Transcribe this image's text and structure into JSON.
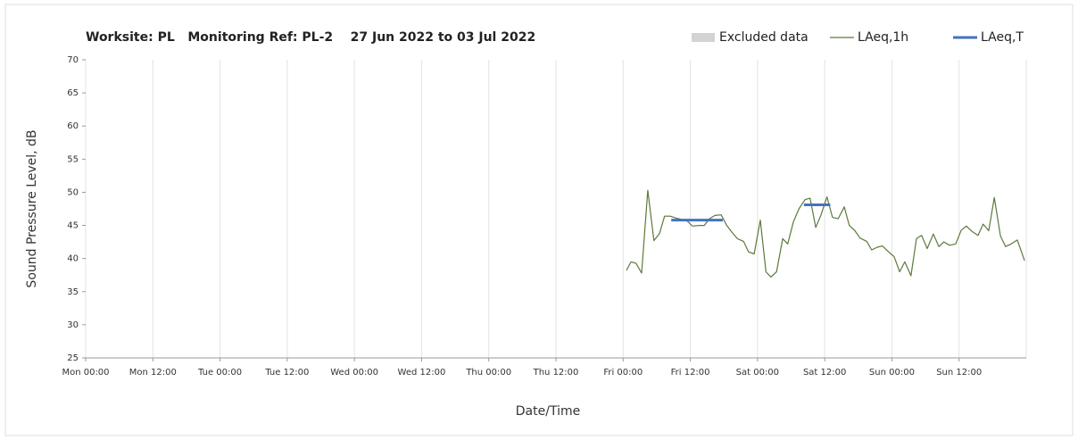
{
  "chart_data": {
    "type": "line",
    "title": "Worksite: PL   Monitoring Ref: PL-2    27 Jun 2022 to 03 Jul 2022",
    "x_label": "Date/Time",
    "y_label": "Sound Pressure Level, dB",
    "xlim": [
      0,
      168
    ],
    "xticks": [
      {
        "value": 0,
        "label": "Mon 00:00"
      },
      {
        "value": 12,
        "label": "Mon 12:00"
      },
      {
        "value": 24,
        "label": "Tue 00:00"
      },
      {
        "value": 36,
        "label": "Tue 12:00"
      },
      {
        "value": 48,
        "label": "Wed 00:00"
      },
      {
        "value": 60,
        "label": "Wed 12:00"
      },
      {
        "value": 72,
        "label": "Thu 00:00"
      },
      {
        "value": 84,
        "label": "Thu 12:00"
      },
      {
        "value": 96,
        "label": "Fri 00:00"
      },
      {
        "value": 108,
        "label": "Fri 12:00"
      },
      {
        "value": 120,
        "label": "Sat 00:00"
      },
      {
        "value": 132,
        "label": "Sat 12:00"
      },
      {
        "value": 144,
        "label": "Sun 00:00"
      },
      {
        "value": 156,
        "label": "Sun 12:00"
      }
    ],
    "ylim": [
      25,
      70
    ],
    "yticks": [
      25,
      30,
      35,
      40,
      45,
      50,
      55,
      60,
      65,
      70
    ],
    "grid": "x",
    "legend": "top-right",
    "series": [
      {
        "name": "Excluded data",
        "color": "#d3d3d3",
        "kind": "area",
        "x": [],
        "values": []
      },
      {
        "name": "LAeq,1h",
        "color": "#5b7a3c",
        "kind": "thin",
        "x": [
          96.6,
          97.4,
          98.3,
          99.3,
          100.4,
          101.5,
          102.5,
          103.4,
          104.4,
          105.5,
          106.5,
          107.4,
          108.4,
          109.5,
          110.5,
          111.4,
          112.4,
          113.5,
          114.5,
          115.4,
          116.4,
          117.5,
          118.4,
          119.4,
          120.5,
          121.5,
          122.4,
          123.4,
          124.5,
          125.4,
          126.4,
          127.4,
          128.5,
          129.4,
          130.4,
          131.3,
          132.4,
          133.4,
          134.4,
          135.5,
          136.4,
          137.4,
          138.3,
          139.5,
          140.4,
          141.4,
          142.3,
          143.4,
          144.4,
          145.4,
          146.3,
          147.4,
          148.4,
          149.3,
          150.3,
          151.4,
          152.4,
          153.3,
          154.3,
          155.4,
          156.4,
          157.3,
          158.3,
          159.4,
          160.3,
          161.3,
          162.3,
          163.4,
          164.3,
          165.3,
          166.4,
          167.7
        ],
        "values": [
          38.2,
          39.5,
          39.3,
          37.8,
          50.3,
          42.7,
          43.8,
          46.4,
          46.4,
          46.1,
          45.9,
          45.7,
          44.9,
          45.0,
          45.0,
          46.0,
          46.5,
          46.6,
          45.0,
          44.0,
          43.0,
          42.6,
          41.0,
          40.7,
          45.8,
          38.0,
          37.2,
          38.0,
          43.0,
          42.2,
          45.5,
          47.5,
          48.9,
          49.1,
          44.7,
          46.5,
          49.3,
          46.2,
          46.0,
          47.8,
          45.0,
          44.2,
          43.1,
          42.6,
          41.3,
          41.7,
          41.9,
          41.0,
          40.3,
          38.0,
          39.5,
          37.4,
          43.0,
          43.5,
          41.5,
          43.7,
          41.8,
          42.5,
          42.0,
          42.2,
          44.3,
          44.9,
          44.1,
          43.5,
          45.2,
          44.2,
          49.2,
          43.4,
          41.8,
          42.2,
          42.8,
          39.7
        ]
      },
      {
        "name": "LAeq,T",
        "color": "#4472c4",
        "kind": "thick",
        "x": [
          104.6,
          113.8,
          121,
          128.3,
          133
        ],
        "values": [
          45.8,
          45.8,
          null,
          48.1,
          48.1
        ]
      }
    ]
  }
}
